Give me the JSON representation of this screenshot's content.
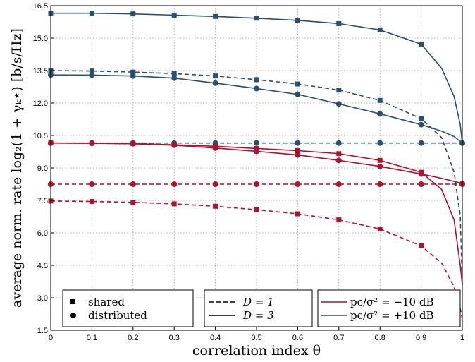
{
  "chart_data": {
    "type": "line",
    "xlabel": "correlation index θ",
    "ylabel": "average norm. rate log₂(1 + γₖ⋆) [b/s/Hz]",
    "xlim": [
      0,
      1
    ],
    "ylim": [
      1.5,
      16.5
    ],
    "xticks": [
      "0",
      "0.1",
      "0.2",
      "0.3",
      "0.4",
      "0.5",
      "0.6",
      "0.7",
      "0.8",
      "0.9",
      "1"
    ],
    "yticks": [
      "1.5",
      "3.0",
      "4.5",
      "6.0",
      "7.5",
      "9.0",
      "10.5",
      "12.0",
      "13.5",
      "15.0",
      "16.5"
    ],
    "grid": true,
    "colors": {
      "red": "#b0112e",
      "blue": "#2c4f6c"
    },
    "legends": {
      "markers": [
        {
          "label": "shared",
          "marker": "square"
        },
        {
          "label": "distributed",
          "marker": "circle"
        }
      ],
      "styles": [
        {
          "label": "D = 1",
          "dash": "dashed"
        },
        {
          "label": "D = 3",
          "dash": "solid"
        }
      ],
      "powers": [
        {
          "label": "pc/σ² = −10 dB",
          "color": "red"
        },
        {
          "label": "pc/σ² = +10 dB",
          "color": "blue"
        }
      ]
    },
    "series": [
      {
        "color": "blue",
        "dash": "solid",
        "marker": "square",
        "x": [
          0,
          0.1,
          0.2,
          0.3,
          0.4,
          0.5,
          0.6,
          0.7,
          0.8,
          0.9,
          0.95,
          0.98,
          0.995,
          1
        ],
        "y": [
          16.15,
          16.15,
          16.12,
          16.06,
          16.0,
          15.92,
          15.82,
          15.67,
          15.38,
          14.72,
          13.6,
          12.3,
          11.0,
          10.15
        ],
        "marks": [
          0,
          0.1,
          0.2,
          0.3,
          0.4,
          0.5,
          0.6,
          0.7,
          0.8,
          0.9
        ]
      },
      {
        "color": "blue",
        "dash": "dashed",
        "marker": "square",
        "x": [
          0,
          0.1,
          0.2,
          0.3,
          0.4,
          0.5,
          0.6,
          0.7,
          0.8,
          0.9,
          0.95,
          0.98,
          0.995,
          1
        ],
        "y": [
          13.5,
          13.48,
          13.43,
          13.36,
          13.25,
          13.08,
          12.88,
          12.6,
          12.12,
          11.28,
          10.4,
          8.8,
          6.8,
          3.5
        ],
        "marks": [
          0,
          0.1,
          0.2,
          0.3,
          0.4,
          0.5,
          0.6,
          0.7,
          0.8,
          0.9
        ]
      },
      {
        "color": "blue",
        "dash": "solid",
        "marker": "circle",
        "x": [
          0,
          0.1,
          0.2,
          0.3,
          0.4,
          0.5,
          0.6,
          0.7,
          0.8,
          0.9,
          0.95,
          0.98,
          1
        ],
        "y": [
          13.3,
          13.29,
          13.25,
          13.15,
          12.92,
          12.67,
          12.4,
          11.96,
          11.5,
          11.0,
          10.7,
          10.45,
          10.15
        ],
        "marks": [
          0,
          0.1,
          0.2,
          0.3,
          0.4,
          0.5,
          0.6,
          0.7,
          0.8,
          0.9,
          1
        ]
      },
      {
        "color": "blue",
        "dash": "dashed",
        "marker": "circle",
        "x": [
          0,
          0.1,
          0.2,
          0.3,
          0.4,
          0.5,
          0.6,
          0.7,
          0.8,
          0.9,
          1
        ],
        "y": [
          10.15,
          10.15,
          10.15,
          10.15,
          10.15,
          10.15,
          10.15,
          10.15,
          10.15,
          10.15,
          10.15
        ],
        "marks": [
          0,
          0.1,
          0.2,
          0.3,
          0.4,
          0.5,
          0.6,
          0.7,
          0.8,
          0.9,
          1
        ]
      },
      {
        "color": "red",
        "dash": "solid",
        "marker": "square",
        "x": [
          0,
          0.1,
          0.2,
          0.3,
          0.4,
          0.5,
          0.6,
          0.7,
          0.8,
          0.9,
          0.95,
          0.98,
          0.995,
          1
        ],
        "y": [
          10.15,
          10.14,
          10.12,
          10.07,
          10.0,
          9.9,
          9.8,
          9.66,
          9.35,
          8.8,
          8.0,
          6.6,
          4.5,
          3.6
        ],
        "marks": [
          0,
          0.1,
          0.2,
          0.3,
          0.4,
          0.5,
          0.6,
          0.7,
          0.8,
          0.9
        ]
      },
      {
        "color": "red",
        "dash": "solid",
        "marker": "circle",
        "x": [
          0,
          0.1,
          0.2,
          0.3,
          0.4,
          0.5,
          0.6,
          0.7,
          0.8,
          0.9,
          0.95,
          1
        ],
        "y": [
          10.15,
          10.14,
          10.12,
          10.05,
          9.92,
          9.77,
          9.6,
          9.35,
          9.07,
          8.72,
          8.52,
          8.28
        ],
        "marks": [
          0,
          0.1,
          0.2,
          0.3,
          0.4,
          0.5,
          0.6,
          0.7,
          0.8,
          0.9,
          1
        ]
      },
      {
        "color": "red",
        "dash": "dashed",
        "marker": "circle",
        "x": [
          0,
          0.1,
          0.2,
          0.3,
          0.4,
          0.5,
          0.6,
          0.7,
          0.8,
          0.9,
          1
        ],
        "y": [
          8.25,
          8.25,
          8.25,
          8.25,
          8.25,
          8.25,
          8.25,
          8.25,
          8.25,
          8.25,
          8.25
        ],
        "marks": [
          0,
          0.1,
          0.2,
          0.3,
          0.4,
          0.5,
          0.6,
          0.7,
          0.8,
          0.9,
          1
        ]
      },
      {
        "color": "red",
        "dash": "dashed",
        "marker": "square",
        "x": [
          0,
          0.1,
          0.2,
          0.3,
          0.4,
          0.5,
          0.6,
          0.7,
          0.8,
          0.9,
          0.95,
          0.98,
          0.995,
          1
        ],
        "y": [
          7.47,
          7.45,
          7.41,
          7.34,
          7.23,
          7.07,
          6.88,
          6.6,
          6.18,
          5.4,
          4.6,
          3.5,
          2.5,
          2.0
        ],
        "marks": [
          0,
          0.1,
          0.2,
          0.3,
          0.4,
          0.5,
          0.6,
          0.7,
          0.8,
          0.9
        ]
      }
    ]
  }
}
